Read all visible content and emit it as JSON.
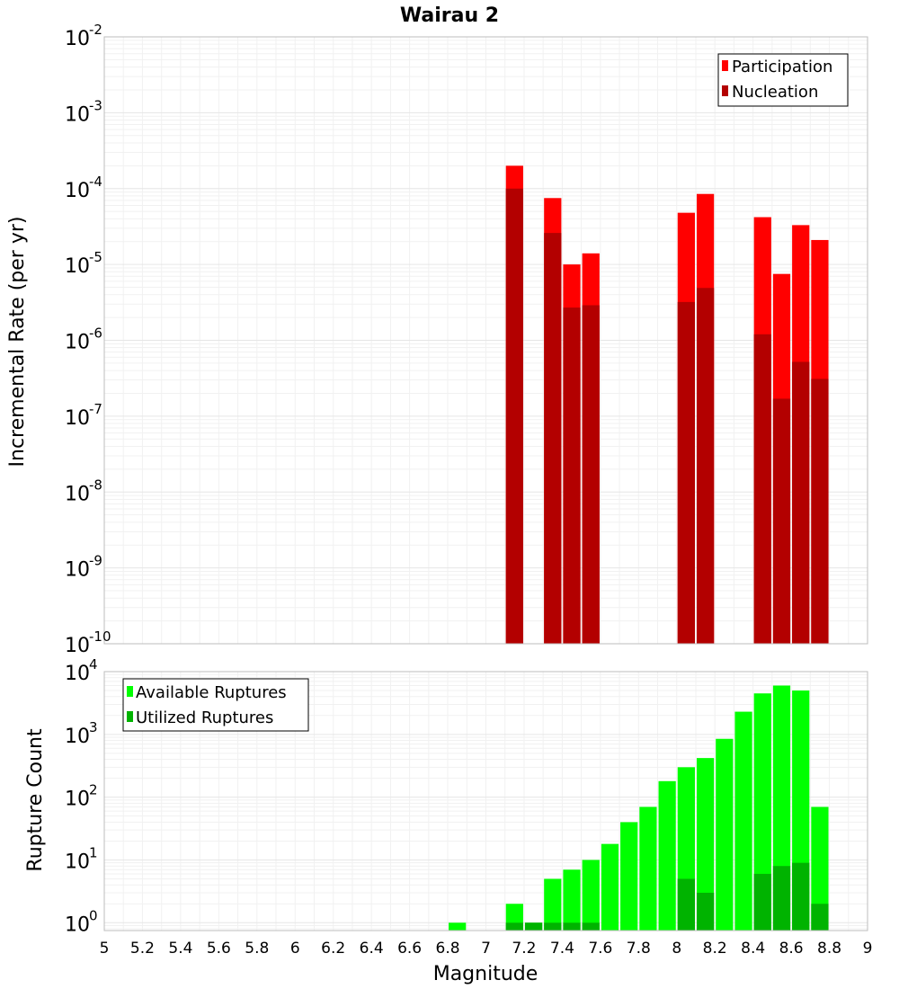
{
  "chart_data": [
    {
      "type": "bar",
      "title": "Wairau 2",
      "xlabel": "Magnitude",
      "ylabel": "Incremental Rate (per yr)",
      "yscale": "log",
      "xlim": [
        5,
        9
      ],
      "ylim": [
        1e-10,
        0.01
      ],
      "grid": true,
      "legend_position": "top-right",
      "y_tick_exponents": [
        "-10",
        "-9",
        "-8",
        "-7",
        "-6",
        "-5",
        "-4",
        "-3",
        "-2"
      ],
      "y_tick_base": "10",
      "series": [
        {
          "name": "Participation",
          "color": "#ff0000",
          "x": [
            7.15,
            7.35,
            7.45,
            7.55,
            8.05,
            8.15,
            8.45,
            8.55,
            8.65,
            8.75
          ],
          "values": [
            0.0002,
            7.5e-05,
            1e-05,
            1.4e-05,
            4.8e-05,
            8.5e-05,
            4.2e-05,
            7.5e-06,
            3.3e-05,
            2.1e-05
          ]
        },
        {
          "name": "Nucleation",
          "color": "#b30000",
          "x": [
            7.15,
            7.35,
            7.45,
            7.55,
            8.05,
            8.15,
            8.45,
            8.55,
            8.65,
            8.75
          ],
          "values": [
            0.0001,
            2.6e-05,
            2.7e-06,
            2.9e-06,
            3.2e-06,
            4.9e-06,
            1.2e-06,
            1.7e-07,
            5.2e-07,
            3.1e-07
          ]
        }
      ]
    },
    {
      "type": "bar",
      "xlabel": "Magnitude",
      "ylabel": "Rupture Count",
      "yscale": "log",
      "xlim": [
        5,
        9
      ],
      "ylim": [
        0.75,
        10000
      ],
      "grid": true,
      "legend_position": "top-left",
      "x_ticks": [
        "5",
        "5.2",
        "5.4",
        "5.6",
        "5.8",
        "6",
        "6.2",
        "6.4",
        "6.6",
        "6.8",
        "7",
        "7.2",
        "7.4",
        "7.6",
        "7.8",
        "8",
        "8.2",
        "8.4",
        "8.6",
        "8.8",
        "9"
      ],
      "y_tick_exponents": [
        "0",
        "1",
        "2",
        "3",
        "4"
      ],
      "y_tick_base": "10",
      "series": [
        {
          "name": "Available Ruptures",
          "color": "#00ff00",
          "x": [
            6.85,
            7.15,
            7.25,
            7.35,
            7.45,
            7.55,
            7.65,
            7.75,
            7.85,
            7.95,
            8.05,
            8.15,
            8.25,
            8.35,
            8.45,
            8.55,
            8.65,
            8.75
          ],
          "values": [
            1,
            2,
            1,
            5,
            7,
            10,
            18,
            40,
            70,
            180,
            300,
            420,
            850,
            2300,
            4500,
            6000,
            5000,
            70
          ]
        },
        {
          "name": "Utilized Ruptures",
          "color": "#00b300",
          "x": [
            7.15,
            7.25,
            7.35,
            7.45,
            7.55,
            8.05,
            8.15,
            8.45,
            8.55,
            8.65,
            8.75
          ],
          "values": [
            1,
            1,
            1,
            1,
            1,
            5,
            3,
            6,
            8,
            9,
            2
          ]
        }
      ]
    }
  ]
}
